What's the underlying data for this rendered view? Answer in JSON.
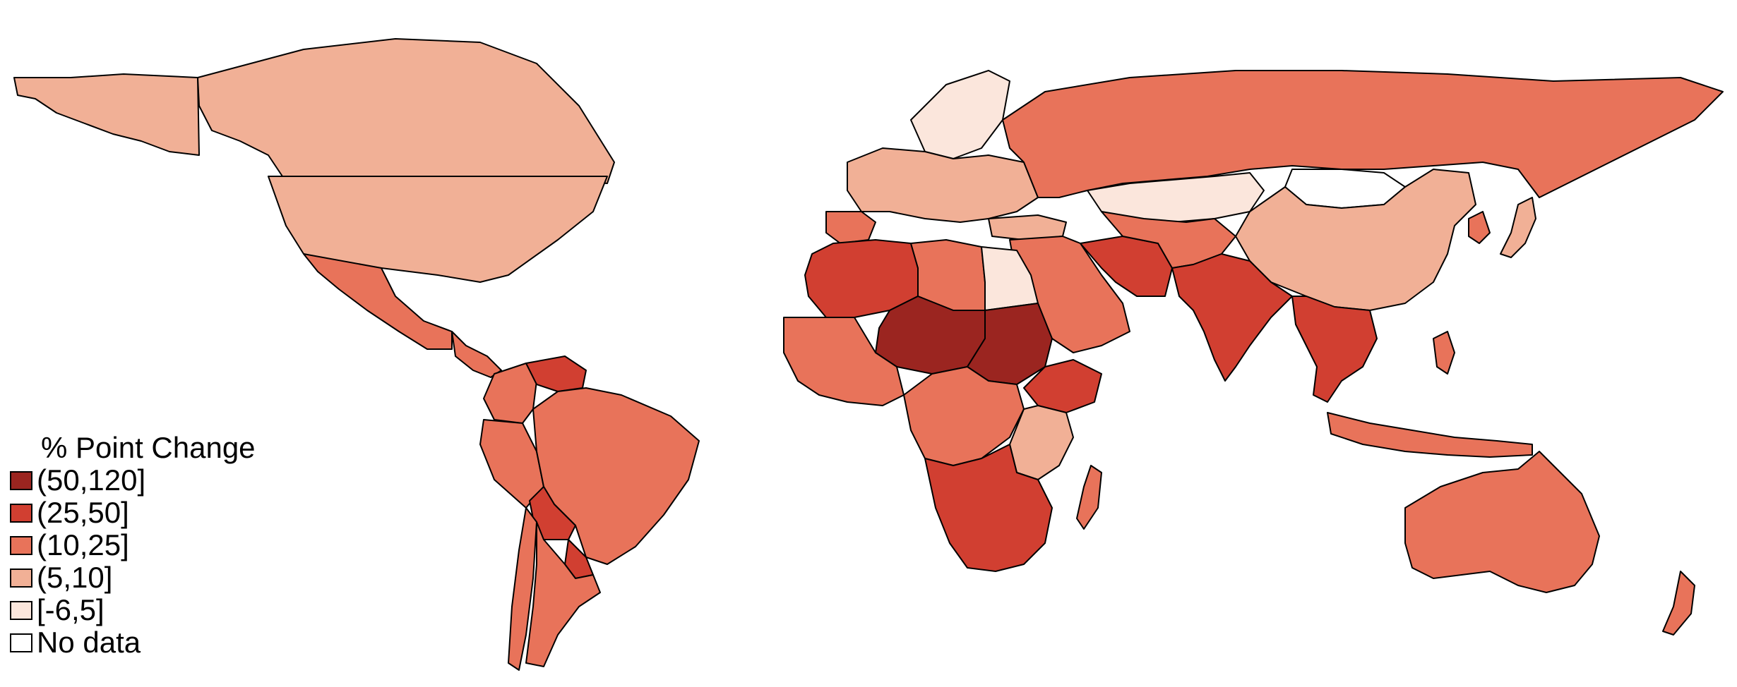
{
  "legend": {
    "title": "% Point Change",
    "items": [
      {
        "label": "(50,120]",
        "color": "#9b2520"
      },
      {
        "label": "(25,50]",
        "color": "#d13f31"
      },
      {
        "label": "(10,25]",
        "color": "#e8735a"
      },
      {
        "label": "(5,10]",
        "color": "#f1b096"
      },
      {
        "label": "[-6,5]",
        "color": "#fbe6dc"
      },
      {
        "label": "No data",
        "color": "#ffffff"
      }
    ]
  },
  "regions": [
    {
      "name": "canada",
      "color": "#f1b096"
    },
    {
      "name": "alaska",
      "color": "#f1b096"
    },
    {
      "name": "usa",
      "color": "#f1b096"
    },
    {
      "name": "mexico",
      "color": "#e8735a"
    },
    {
      "name": "central-america",
      "color": "#e8735a"
    },
    {
      "name": "venezuela",
      "color": "#d13f31"
    },
    {
      "name": "colombia",
      "color": "#e8735a"
    },
    {
      "name": "brazil",
      "color": "#e8735a"
    },
    {
      "name": "peru",
      "color": "#e8735a"
    },
    {
      "name": "bolivia",
      "color": "#d13f31"
    },
    {
      "name": "paraguay",
      "color": "#d13f31"
    },
    {
      "name": "argentina",
      "color": "#e8735a"
    },
    {
      "name": "chile",
      "color": "#e8735a"
    },
    {
      "name": "russia",
      "color": "#e8735a"
    },
    {
      "name": "scandinavia",
      "color": "#fbe6dc"
    },
    {
      "name": "europe",
      "color": "#f1b096"
    },
    {
      "name": "iberia",
      "color": "#e8735a"
    },
    {
      "name": "turkey",
      "color": "#f1b096"
    },
    {
      "name": "kazakhstan",
      "color": "#fbe6dc"
    },
    {
      "name": "mongolia",
      "color": "#ffffff"
    },
    {
      "name": "china",
      "color": "#f1b096"
    },
    {
      "name": "korea",
      "color": "#e8735a"
    },
    {
      "name": "japan",
      "color": "#f1b096"
    },
    {
      "name": "middle-east",
      "color": "#e8735a"
    },
    {
      "name": "iran",
      "color": "#d13f31"
    },
    {
      "name": "central-asia",
      "color": "#e8735a"
    },
    {
      "name": "india",
      "color": "#d13f31"
    },
    {
      "name": "southeast-asia",
      "color": "#d13f31"
    },
    {
      "name": "indonesia",
      "color": "#e8735a"
    },
    {
      "name": "philippines",
      "color": "#e8735a"
    },
    {
      "name": "australia",
      "color": "#e8735a"
    },
    {
      "name": "new-zealand",
      "color": "#e8735a"
    },
    {
      "name": "northwest-africa",
      "color": "#d13f31"
    },
    {
      "name": "libya",
      "color": "#e8735a"
    },
    {
      "name": "egypt",
      "color": "#fbe6dc"
    },
    {
      "name": "sahel",
      "color": "#9b2520"
    },
    {
      "name": "sudan",
      "color": "#9b2520"
    },
    {
      "name": "west-africa",
      "color": "#e8735a"
    },
    {
      "name": "ethiopia",
      "color": "#d13f31"
    },
    {
      "name": "central-africa",
      "color": "#e8735a"
    },
    {
      "name": "east-africa",
      "color": "#f1b096"
    },
    {
      "name": "southern-africa",
      "color": "#d13f31"
    },
    {
      "name": "madagascar",
      "color": "#e8735a"
    }
  ]
}
